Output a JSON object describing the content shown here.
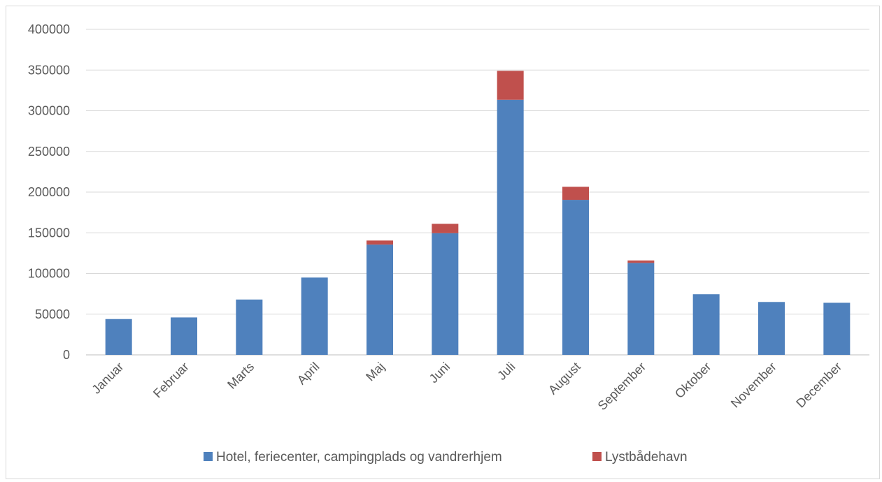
{
  "chart_data": {
    "type": "bar",
    "stacked": true,
    "categories": [
      "Januar",
      "Februar",
      "Marts",
      "April",
      "Maj",
      "Juni",
      "Juli",
      "August",
      "September",
      "Oktober",
      "November",
      "December"
    ],
    "series": [
      {
        "name": "Hotel, feriecenter, campingplads og vandrerhjem",
        "color": "#4f81bd",
        "values": [
          44000,
          46000,
          68000,
          95000,
          135500,
          149500,
          313500,
          190500,
          113000,
          74500,
          65000,
          64000
        ]
      },
      {
        "name": "Lystbådehavn",
        "color": "#c0504d",
        "values": [
          0,
          0,
          0,
          0,
          5000,
          11500,
          35500,
          16000,
          3000,
          0,
          0,
          0
        ]
      }
    ],
    "ylim": [
      0,
      400000
    ],
    "yticks": [
      "0",
      "50000",
      "100000",
      "150000",
      "200000",
      "250000",
      "300000",
      "350000",
      "400000"
    ],
    "title": "",
    "xlabel": "",
    "ylabel": "",
    "grid": true,
    "legend_position": "bottom",
    "gridline_color": "#d9d9d9",
    "axis_color": "#bfbfbf"
  }
}
